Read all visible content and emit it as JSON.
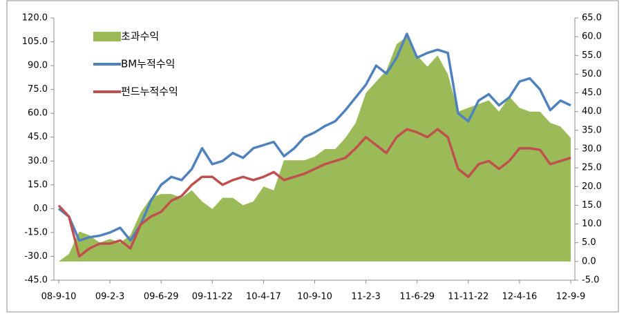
{
  "chart_data": {
    "type": "line",
    "categories": [
      "08-9-10",
      null,
      null,
      null,
      null,
      "09-2-3",
      null,
      null,
      null,
      null,
      "09-6-29",
      null,
      null,
      null,
      null,
      "09-11-22",
      null,
      null,
      null,
      null,
      "10-4-17",
      null,
      null,
      null,
      null,
      "10-9-10",
      null,
      null,
      null,
      null,
      "11-2-3",
      null,
      null,
      null,
      null,
      "11-6-29",
      null,
      null,
      null,
      null,
      "11-11-22",
      null,
      null,
      null,
      null,
      "12-4-16",
      null,
      null,
      null,
      null,
      "12-9-9"
    ],
    "series": [
      {
        "name": "초과수익",
        "type": "area",
        "axis": "y2",
        "color": "#9bbb59",
        "values": [
          0,
          2,
          8,
          7,
          5,
          6,
          5,
          7,
          13,
          17,
          18,
          18,
          17,
          19,
          16,
          14,
          17,
          17,
          15,
          16,
          20,
          19,
          27,
          27,
          27,
          28,
          30,
          30,
          33,
          37,
          45,
          48,
          51,
          58,
          60,
          55,
          52,
          55,
          50,
          40,
          41,
          42,
          43,
          40,
          44,
          41,
          40,
          40,
          37,
          36,
          33
        ]
      },
      {
        "name": "BM누적수익",
        "type": "line",
        "color": "#4f81bd",
        "values": [
          0,
          -5,
          -20,
          -18,
          -17,
          -15,
          -12,
          -20,
          -10,
          5,
          15,
          20,
          18,
          25,
          38,
          28,
          30,
          35,
          32,
          38,
          40,
          42,
          33,
          38,
          45,
          48,
          52,
          55,
          62,
          70,
          78,
          90,
          85,
          95,
          110,
          95,
          98,
          100,
          98,
          60,
          55,
          68,
          72,
          65,
          70,
          80,
          82,
          75,
          62,
          68,
          65
        ]
      },
      {
        "name": "펀드누적수익",
        "type": "line",
        "color": "#c0504d",
        "values": [
          2,
          -5,
          -30,
          -25,
          -22,
          -22,
          -20,
          -25,
          -10,
          -5,
          -2,
          5,
          8,
          15,
          20,
          20,
          15,
          18,
          20,
          18,
          20,
          23,
          18,
          20,
          22,
          25,
          28,
          30,
          32,
          38,
          45,
          40,
          35,
          45,
          50,
          48,
          45,
          50,
          45,
          25,
          20,
          28,
          30,
          25,
          30,
          38,
          38,
          37,
          28,
          30,
          32
        ]
      }
    ],
    "ylim": [
      -45,
      120
    ],
    "yticks": [
      {
        "value": -45,
        "label": "-45.0"
      },
      {
        "value": -30,
        "label": "-30.0"
      },
      {
        "value": -15,
        "label": "-15.0"
      },
      {
        "value": 0,
        "label": "0.0"
      },
      {
        "value": 15,
        "label": "15.0"
      },
      {
        "value": 30,
        "label": "30.0"
      },
      {
        "value": 45,
        "label": "45.0"
      },
      {
        "value": 60,
        "label": "60.0"
      },
      {
        "value": 75,
        "label": "75.0"
      },
      {
        "value": 90,
        "label": "90.0"
      },
      {
        "value": 105,
        "label": "105.0"
      },
      {
        "value": 120,
        "label": "120.0"
      }
    ],
    "y2lim": [
      -5,
      65
    ],
    "y2ticks": [
      {
        "value": -5,
        "label": "-5.0"
      },
      {
        "value": 0,
        "label": "0.0"
      },
      {
        "value": 5,
        "label": "5.0"
      },
      {
        "value": 10,
        "label": "10.0"
      },
      {
        "value": 15,
        "label": "15.0"
      },
      {
        "value": 20,
        "label": "20.0"
      },
      {
        "value": 25,
        "label": "25.0"
      },
      {
        "value": 30,
        "label": "30.0"
      },
      {
        "value": 35,
        "label": "35.0"
      },
      {
        "value": 40,
        "label": "40.0"
      },
      {
        "value": 45,
        "label": "45.0"
      },
      {
        "value": 50,
        "label": "50.0"
      },
      {
        "value": 55,
        "label": "55.0"
      },
      {
        "value": 60,
        "label": "60.0"
      },
      {
        "value": 65,
        "label": "65.0"
      }
    ],
    "legend": "top-left",
    "grid": false
  }
}
